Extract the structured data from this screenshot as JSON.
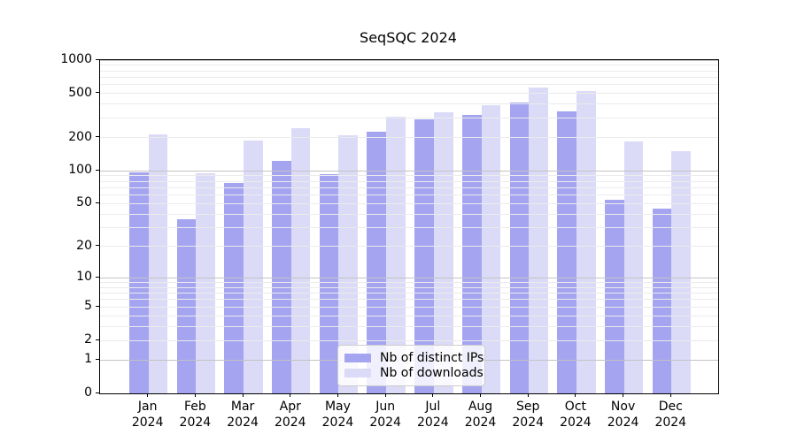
{
  "title": "SeqSQC 2024",
  "chart_data": {
    "type": "bar",
    "title": "SeqSQC 2024",
    "categories": [
      "Jan",
      "Feb",
      "Mar",
      "Apr",
      "May",
      "Jun",
      "Jul",
      "Aug",
      "Sep",
      "Oct",
      "Nov",
      "Dec"
    ],
    "year_label": "2024",
    "series": [
      {
        "name": "Nb of distinct IPs",
        "color": "#a4a4f0",
        "values": [
          97,
          36,
          77,
          122,
          94,
          224,
          291,
          323,
          418,
          348,
          54,
          45
        ]
      },
      {
        "name": "Nb of downloads",
        "color": "#dbdbf8",
        "values": [
          214,
          95,
          188,
          242,
          209,
          311,
          340,
          389,
          568,
          523,
          183,
          150
        ]
      }
    ],
    "xlabel": "",
    "ylabel": "",
    "yscale": "log1p",
    "ylim": [
      0,
      1000
    ],
    "y_ticks": [
      0,
      1,
      2,
      5,
      10,
      20,
      50,
      100,
      200,
      500,
      1000
    ],
    "y_tick_labels": [
      "0",
      "1",
      "2",
      "5",
      "10",
      "20",
      "50",
      "100",
      "200",
      "500",
      "1000"
    ],
    "grid": "both",
    "grid_major_values": [
      1,
      10,
      100,
      1000
    ],
    "legend_position": "lower-center",
    "legend_labels": [
      "Nb of distinct IPs",
      "Nb of downloads"
    ]
  },
  "appearance": {
    "background": "#ffffff",
    "bar_color_ips": "#a4a4f0",
    "bar_color_downloads": "#dbdbf8",
    "grid_major_color": "#c3c3c3",
    "grid_minor_color": "#ebebeb",
    "axis_color": "#000000",
    "legend_border_color": "#cccccc"
  }
}
